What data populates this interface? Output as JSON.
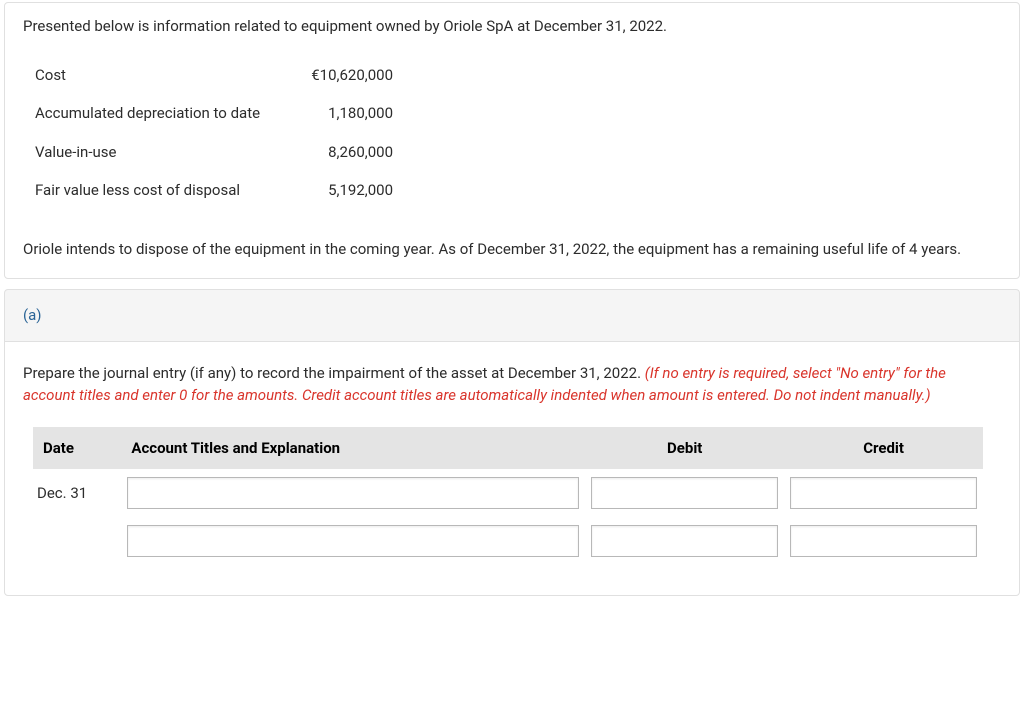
{
  "problem": {
    "intro": "Presented below is information related to equipment owned by Oriole SpA at December 31, 2022.",
    "rows": [
      {
        "label": "Cost",
        "value": "€10,620,000"
      },
      {
        "label": "Accumulated depreciation to date",
        "value": "1,180,000"
      },
      {
        "label": "Value-in-use",
        "value": "8,260,000"
      },
      {
        "label": "Fair value less cost of disposal",
        "value": "5,192,000"
      }
    ],
    "note": "Oriole intends to dispose of the equipment in the coming year. As of December 31, 2022, the equipment has a remaining useful life of 4 years."
  },
  "part": {
    "id": "(a)",
    "instruction_plain": "Prepare the journal entry (if any) to record the impairment of the asset at December 31, 2022. ",
    "instruction_em": "(If no entry is required, select \"No entry\" for the account titles and enter 0 for the amounts. Credit account titles are automatically indented when amount is entered. Do not indent manually.)",
    "headers": {
      "date": "Date",
      "account": "Account Titles and Explanation",
      "debit": "Debit",
      "credit": "Credit"
    },
    "lines": [
      {
        "date": "Dec. 31",
        "account": "",
        "debit": "",
        "credit": ""
      },
      {
        "date": "",
        "account": "",
        "debit": "",
        "credit": ""
      }
    ]
  }
}
